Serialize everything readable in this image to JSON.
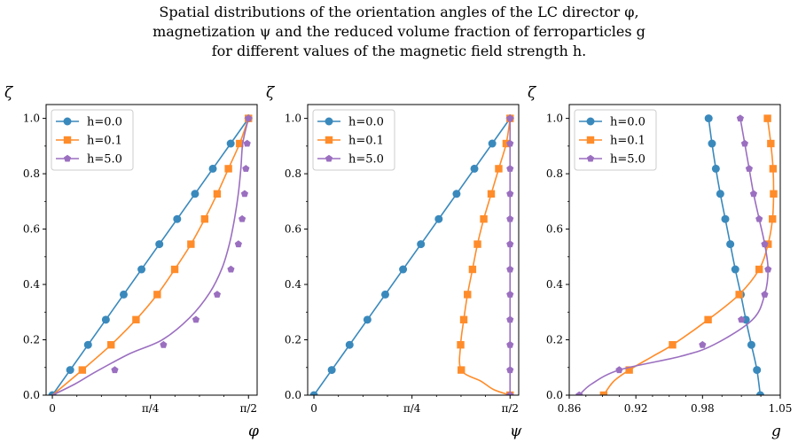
{
  "title_lines": [
    "Spatial distributions of the orientation angles of the LC director φ,",
    "magnetization ψ and the reduced volume fraction of ferroparticles g",
    "for different values of the magnetic field strength h."
  ],
  "series_colors": [
    "#3a89bc",
    "#ff8c2a",
    "#9b6fc0"
  ],
  "chart_data": [
    {
      "type": "line",
      "xlabel": "φ",
      "ylabel": "ζ",
      "xlim": [
        -0.05,
        1.64
      ],
      "ylim": [
        0,
        1.05
      ],
      "xticks": [
        0,
        0.7854,
        1.5708
      ],
      "xtick_labels": [
        "0",
        "π/4",
        "π/2"
      ],
      "yticks": [
        0,
        0.2,
        0.4,
        0.6,
        0.8,
        1.0
      ],
      "ytick_labels": [
        "0.0",
        "0.2",
        "0.4",
        "0.6",
        "0.8",
        "1.0"
      ],
      "grid": false,
      "legend": "top-left",
      "series": [
        {
          "name": "h=0.0",
          "marker": "circle",
          "curve": [
            [
              0,
              0
            ],
            [
              1.5708,
              1.0
            ]
          ],
          "markers": [
            [
              0,
              0
            ],
            [
              0.1428,
              0.0909
            ],
            [
              0.2856,
              0.1818
            ],
            [
              0.4284,
              0.2727
            ],
            [
              0.5712,
              0.3636
            ],
            [
              0.714,
              0.4545
            ],
            [
              0.8568,
              0.5455
            ],
            [
              0.9996,
              0.6364
            ],
            [
              1.1424,
              0.7273
            ],
            [
              1.2852,
              0.8182
            ],
            [
              1.428,
              0.9091
            ],
            [
              1.5708,
              1.0
            ]
          ]
        },
        {
          "name": "h=0.1",
          "marker": "square",
          "curve": [
            [
              0,
              0
            ],
            [
              0.24,
              0.0909
            ],
            [
              0.47,
              0.1818
            ],
            [
              0.67,
              0.2727
            ],
            [
              0.84,
              0.3636
            ],
            [
              0.98,
              0.4545
            ],
            [
              1.11,
              0.5455
            ],
            [
              1.22,
              0.6364
            ],
            [
              1.32,
              0.7273
            ],
            [
              1.41,
              0.8182
            ],
            [
              1.5,
              0.9091
            ],
            [
              1.5708,
              1.0
            ]
          ],
          "markers": [
            [
              0.24,
              0.0909
            ],
            [
              0.47,
              0.1818
            ],
            [
              0.67,
              0.2727
            ],
            [
              0.84,
              0.3636
            ],
            [
              0.98,
              0.4545
            ],
            [
              1.11,
              0.5455
            ],
            [
              1.22,
              0.6364
            ],
            [
              1.32,
              0.7273
            ],
            [
              1.41,
              0.8182
            ],
            [
              1.5,
              0.9091
            ],
            [
              1.5708,
              1.0
            ]
          ]
        },
        {
          "name": "h=5.0",
          "marker": "pentagon",
          "curve": [
            [
              0,
              0
            ],
            [
              0.18,
              0.04
            ],
            [
              0.35,
              0.085
            ],
            [
              0.62,
              0.15
            ],
            [
              0.88,
              0.2
            ],
            [
              1.1,
              0.28
            ],
            [
              1.26,
              0.37
            ],
            [
              1.36,
              0.46
            ],
            [
              1.42,
              0.55
            ],
            [
              1.46,
              0.64
            ],
            [
              1.49,
              0.73
            ],
            [
              1.51,
              0.82
            ],
            [
              1.525,
              0.91
            ],
            [
              1.5708,
              1.0
            ]
          ],
          "markers": [
            [
              0.5,
              0.0909
            ],
            [
              0.89,
              0.1818
            ],
            [
              1.15,
              0.2727
            ],
            [
              1.32,
              0.3636
            ],
            [
              1.43,
              0.4545
            ],
            [
              1.49,
              0.5455
            ],
            [
              1.52,
              0.6364
            ],
            [
              1.54,
              0.7273
            ],
            [
              1.55,
              0.8182
            ],
            [
              1.56,
              0.9091
            ],
            [
              1.5708,
              1.0
            ]
          ]
        }
      ]
    },
    {
      "type": "line",
      "xlabel": "ψ",
      "ylabel": "ζ",
      "xlim": [
        -0.05,
        1.64
      ],
      "ylim": [
        0,
        1.05
      ],
      "xticks": [
        0,
        0.7854,
        1.5708
      ],
      "xtick_labels": [
        "0",
        "π/4",
        "π/2"
      ],
      "yticks": [
        0,
        0.2,
        0.4,
        0.6,
        0.8,
        1.0
      ],
      "ytick_labels": [
        "0.0",
        "0.2",
        "0.4",
        "0.6",
        "0.8",
        "1.0"
      ],
      "grid": false,
      "legend": "top-left",
      "series": [
        {
          "name": "h=0.0",
          "marker": "circle",
          "curve": [
            [
              0,
              0
            ],
            [
              1.5708,
              1.0
            ]
          ],
          "markers": [
            [
              0,
              0
            ],
            [
              0.1428,
              0.0909
            ],
            [
              0.2856,
              0.1818
            ],
            [
              0.4284,
              0.2727
            ],
            [
              0.5712,
              0.3636
            ],
            [
              0.714,
              0.4545
            ],
            [
              0.8568,
              0.5455
            ],
            [
              0.9996,
              0.6364
            ],
            [
              1.1424,
              0.7273
            ],
            [
              1.2852,
              0.8182
            ],
            [
              1.428,
              0.9091
            ],
            [
              1.5708,
              1.0
            ]
          ]
        },
        {
          "name": "h=0.1",
          "marker": "square",
          "curve": [
            [
              1.5708,
              0
            ],
            [
              1.44,
              0.02
            ],
            [
              1.34,
              0.05
            ],
            [
              1.18,
              0.0909
            ],
            [
              1.175,
              0.1818
            ],
            [
              1.2,
              0.2727
            ],
            [
              1.23,
              0.3636
            ],
            [
              1.27,
              0.4545
            ],
            [
              1.31,
              0.5455
            ],
            [
              1.36,
              0.6364
            ],
            [
              1.42,
              0.7273
            ],
            [
              1.48,
              0.8182
            ],
            [
              1.54,
              0.9091
            ],
            [
              1.5708,
              1.0
            ]
          ],
          "markers": [
            [
              1.5708,
              0
            ],
            [
              1.18,
              0.0909
            ],
            [
              1.175,
              0.1818
            ],
            [
              1.2,
              0.2727
            ],
            [
              1.23,
              0.3636
            ],
            [
              1.27,
              0.4545
            ],
            [
              1.31,
              0.5455
            ],
            [
              1.36,
              0.6364
            ],
            [
              1.42,
              0.7273
            ],
            [
              1.48,
              0.8182
            ],
            [
              1.54,
              0.9091
            ],
            [
              1.5708,
              1.0
            ]
          ]
        },
        {
          "name": "h=5.0",
          "marker": "pentagon",
          "curve": [
            [
              1.5708,
              0
            ],
            [
              1.5708,
              1.0
            ]
          ],
          "markers": [
            [
              1.5708,
              0
            ],
            [
              1.5708,
              0.0909
            ],
            [
              1.5708,
              0.1818
            ],
            [
              1.5708,
              0.2727
            ],
            [
              1.5708,
              0.3636
            ],
            [
              1.5708,
              0.4545
            ],
            [
              1.5708,
              0.5455
            ],
            [
              1.5708,
              0.6364
            ],
            [
              1.5708,
              0.7273
            ],
            [
              1.5708,
              0.8182
            ],
            [
              1.5708,
              0.9091
            ],
            [
              1.5708,
              1.0
            ]
          ]
        }
      ]
    },
    {
      "type": "line",
      "xlabel": "g",
      "ylabel": "ζ",
      "xlim": [
        0.86,
        1.05
      ],
      "ylim": [
        0,
        1.05
      ],
      "xticks": [
        0.86,
        0.92,
        0.98,
        1.05
      ],
      "xtick_labels": [
        "0.86",
        "0.92",
        "0.98",
        "1.05"
      ],
      "yticks": [
        0,
        0.2,
        0.4,
        0.6,
        0.8,
        1.0
      ],
      "ytick_labels": [
        "0.0",
        "0.2",
        "0.4",
        "0.6",
        "0.8",
        "1.0"
      ],
      "grid": false,
      "legend": "top-left",
      "series": [
        {
          "name": "h=0.0",
          "marker": "circle",
          "curve": [
            [
              1.032,
              0
            ],
            [
              1.029,
              0.0909
            ],
            [
              1.024,
              0.1818
            ],
            [
              1.019,
              0.2727
            ],
            [
              1.0145,
              0.3636
            ],
            [
              1.0095,
              0.4545
            ],
            [
              1.005,
              0.5455
            ],
            [
              1.0005,
              0.6364
            ],
            [
              0.996,
              0.7273
            ],
            [
              0.992,
              0.8182
            ],
            [
              0.9885,
              0.9091
            ],
            [
              0.9855,
              1.0
            ]
          ],
          "markers": [
            [
              1.032,
              0
            ],
            [
              1.029,
              0.0909
            ],
            [
              1.024,
              0.1818
            ],
            [
              1.019,
              0.2727
            ],
            [
              1.0145,
              0.3636
            ],
            [
              1.0095,
              0.4545
            ],
            [
              1.005,
              0.5455
            ],
            [
              1.0005,
              0.6364
            ],
            [
              0.996,
              0.7273
            ],
            [
              0.992,
              0.8182
            ],
            [
              0.9885,
              0.9091
            ],
            [
              0.9855,
              1.0
            ]
          ]
        },
        {
          "name": "h=0.1",
          "marker": "square",
          "curve": [
            [
              0.891,
              0
            ],
            [
              0.9,
              0.05
            ],
            [
              0.914,
              0.0909
            ],
            [
              0.935,
              0.14
            ],
            [
              0.953,
              0.1818
            ],
            [
              0.985,
              0.2727
            ],
            [
              1.013,
              0.3636
            ],
            [
              1.031,
              0.4545
            ],
            [
              1.039,
              0.5455
            ],
            [
              1.043,
              0.6364
            ],
            [
              1.044,
              0.7273
            ],
            [
              1.0435,
              0.8182
            ],
            [
              1.0415,
              0.9091
            ],
            [
              1.0385,
              1.0
            ]
          ],
          "markers": [
            [
              0.891,
              0
            ],
            [
              0.914,
              0.0909
            ],
            [
              0.953,
              0.1818
            ],
            [
              0.985,
              0.2727
            ],
            [
              1.013,
              0.3636
            ],
            [
              1.031,
              0.4545
            ],
            [
              1.039,
              0.5455
            ],
            [
              1.043,
              0.6364
            ],
            [
              1.044,
              0.7273
            ],
            [
              1.0435,
              0.8182
            ],
            [
              1.0415,
              0.9091
            ],
            [
              1.0385,
              1.0
            ]
          ]
        },
        {
          "name": "h=5.0",
          "marker": "pentagon",
          "curve": [
            [
              0.869,
              0
            ],
            [
              0.88,
              0.04
            ],
            [
              0.905,
              0.0909
            ],
            [
              0.96,
              0.14
            ],
            [
              0.99,
              0.1818
            ],
            [
              1.025,
              0.2727
            ],
            [
              1.036,
              0.3636
            ],
            [
              1.039,
              0.4545
            ],
            [
              1.036,
              0.5455
            ],
            [
              1.031,
              0.6364
            ],
            [
              1.026,
              0.7273
            ],
            [
              1.022,
              0.8182
            ],
            [
              1.018,
              0.9091
            ],
            [
              1.014,
              1.0
            ]
          ],
          "markers": [
            [
              0.869,
              0
            ],
            [
              0.905,
              0.0909
            ],
            [
              0.98,
              0.1818
            ],
            [
              1.015,
              0.2727
            ],
            [
              1.036,
              0.3636
            ],
            [
              1.039,
              0.4545
            ],
            [
              1.036,
              0.5455
            ],
            [
              1.031,
              0.6364
            ],
            [
              1.026,
              0.7273
            ],
            [
              1.022,
              0.8182
            ],
            [
              1.018,
              0.9091
            ],
            [
              1.014,
              1.0
            ]
          ]
        }
      ]
    }
  ]
}
